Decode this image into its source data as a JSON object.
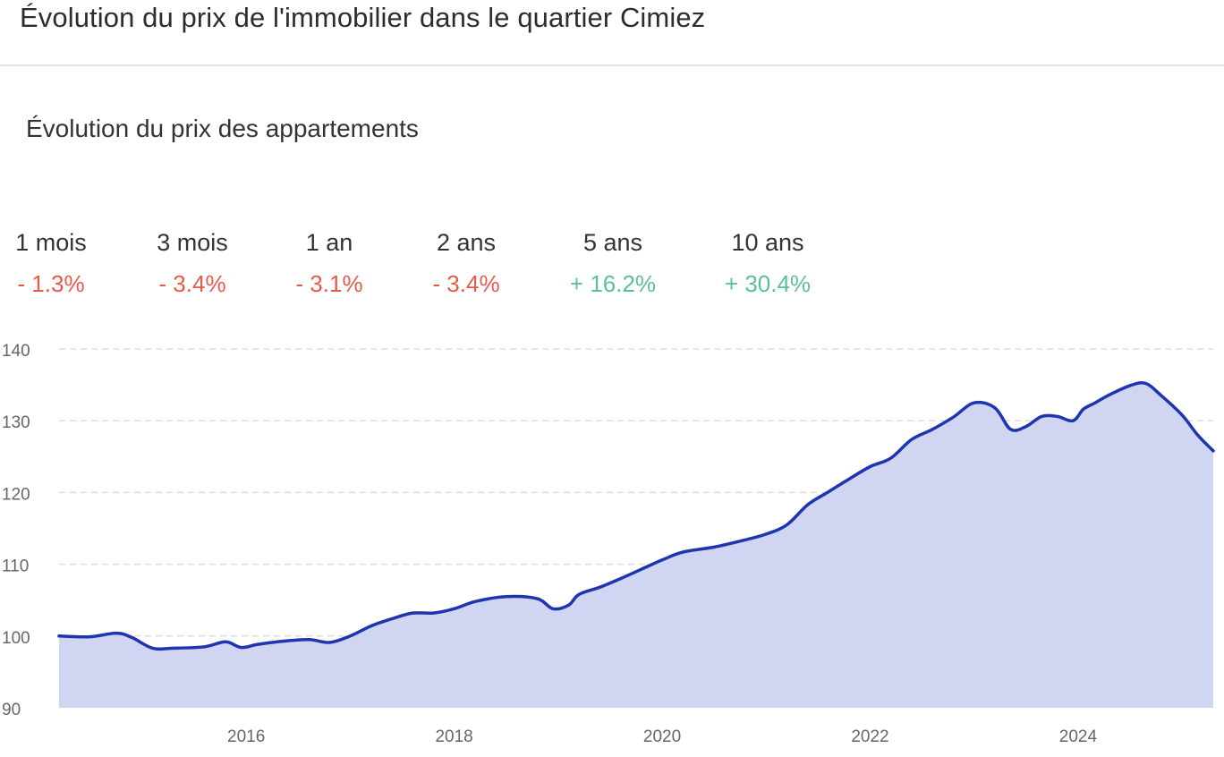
{
  "header": {
    "title": "Évolution du prix de l'immobilier dans le quartier Cimiez"
  },
  "stats": [
    {
      "period": "1 mois",
      "change": "- 1.3%",
      "trend": "down"
    },
    {
      "period": "3 mois",
      "change": "- 3.4%",
      "trend": "down"
    },
    {
      "period": "1 an",
      "change": "- 3.1%",
      "trend": "down"
    },
    {
      "period": "2 ans",
      "change": "- 3.4%",
      "trend": "down"
    },
    {
      "period": "5 ans",
      "change": "+ 16.2%",
      "trend": "up"
    },
    {
      "period": "10 ans",
      "change": "+ 30.4%",
      "trend": "up"
    }
  ],
  "colors": {
    "line": "#1f35b0",
    "area": "#d0d6f1",
    "negative": "#e45a4b",
    "positive": "#5bbf97",
    "grid": "#dddddd"
  },
  "chart_data": {
    "type": "area",
    "title": "Évolution du prix des appartements",
    "xlabel": "",
    "ylabel": "",
    "ylim": [
      90,
      140
    ],
    "xlim": [
      2014.2,
      2025.3
    ],
    "y_ticks": [
      90,
      100,
      110,
      120,
      130,
      140
    ],
    "x_ticks": [
      2016,
      2018,
      2020,
      2022,
      2024
    ],
    "grid": true,
    "series": [
      {
        "x": [
          2014.2,
          2014.5,
          2014.75,
          2014.9,
          2015.1,
          2015.3,
          2015.6,
          2015.8,
          2015.95,
          2016.1,
          2016.3,
          2016.6,
          2016.8,
          2017.0,
          2017.2,
          2017.4,
          2017.6,
          2017.8,
          2018.0,
          2018.2,
          2018.5,
          2018.8,
          2018.95,
          2019.1,
          2019.2,
          2019.4,
          2019.6,
          2019.8,
          2020.0,
          2020.2,
          2020.5,
          2020.8,
          2021.0,
          2021.2,
          2021.4,
          2021.6,
          2021.8,
          2022.0,
          2022.2,
          2022.4,
          2022.6,
          2022.8,
          2023.0,
          2023.2,
          2023.35,
          2023.5,
          2023.65,
          2023.8,
          2023.95,
          2024.05,
          2024.15,
          2024.3,
          2024.5,
          2024.65,
          2024.8,
          2025.0,
          2025.15,
          2025.3
        ],
        "y": [
          100.0,
          99.9,
          100.4,
          99.8,
          98.3,
          98.3,
          98.5,
          99.2,
          98.4,
          98.8,
          99.2,
          99.5,
          99.1,
          100.0,
          101.4,
          102.4,
          103.2,
          103.2,
          103.8,
          104.8,
          105.5,
          105.2,
          103.8,
          104.3,
          105.8,
          106.8,
          108.0,
          109.3,
          110.6,
          111.7,
          112.4,
          113.4,
          114.2,
          115.5,
          118.3,
          120.1,
          121.9,
          123.6,
          124.8,
          127.4,
          128.8,
          130.5,
          132.5,
          131.8,
          128.8,
          129.2,
          130.6,
          130.6,
          130.0,
          131.6,
          132.4,
          133.6,
          134.9,
          135.2,
          133.5,
          130.8,
          128.0,
          125.8
        ]
      }
    ]
  }
}
